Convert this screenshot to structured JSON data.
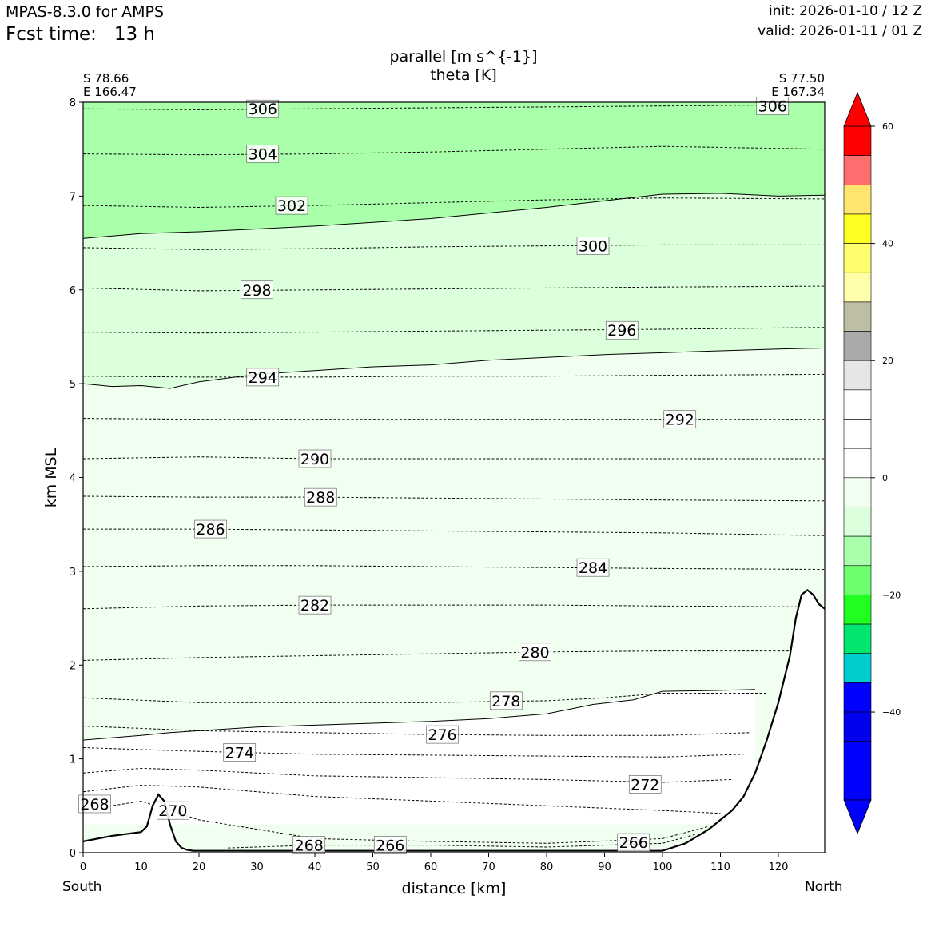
{
  "header": {
    "model": "MPAS-8.3.0 for AMPS",
    "fcst_label": "Fcst time:",
    "fcst_value": "13 h",
    "init": "init: 2026-01-10 / 12 Z",
    "valid": "valid: 2026-01-11 / 01 Z"
  },
  "endpoints": {
    "left_lat": "S 78.66",
    "left_lon": "E 166.47",
    "right_lat": "S 77.50",
    "right_lon": "E 167.34",
    "left_dir": "South",
    "right_dir": "North"
  },
  "chart_data": {
    "type": "contour",
    "title_line1": "parallel [m s^{-1}]",
    "title_line2": "theta [K]",
    "xlabel": "distance [km]",
    "ylabel": "km MSL",
    "xlim": [
      0,
      128
    ],
    "ylim": [
      0,
      8
    ],
    "xticks": [
      "0",
      "10",
      "20",
      "30",
      "40",
      "50",
      "60",
      "70",
      "80",
      "90",
      "100",
      "110",
      "120"
    ],
    "yticks": [
      "0",
      "1",
      "2",
      "3",
      "4",
      "5",
      "6",
      "7",
      "8"
    ],
    "wind_fill_boundaries": [
      {
        "level": "-15",
        "x": [
          0,
          10,
          20,
          30,
          40,
          50,
          60,
          70,
          80,
          90,
          100,
          110,
          120,
          128
        ],
        "y": [
          6.55,
          6.6,
          6.62,
          6.65,
          6.68,
          6.72,
          6.76,
          6.82,
          6.88,
          6.95,
          7.02,
          7.03,
          7.0,
          7.01
        ]
      },
      {
        "level": "-10",
        "x": [
          0,
          5,
          10,
          15,
          20,
          30,
          40,
          50,
          60,
          70,
          80,
          90,
          100,
          110,
          120,
          128
        ],
        "y": [
          5.0,
          4.97,
          4.98,
          4.95,
          5.02,
          5.1,
          5.14,
          5.18,
          5.2,
          5.25,
          5.28,
          5.31,
          5.33,
          5.35,
          5.37,
          5.38
        ]
      },
      {
        "level": "-5",
        "x": [
          0,
          10,
          15,
          20,
          30,
          40,
          50,
          60,
          70,
          80,
          88,
          95,
          100,
          110,
          116
        ],
        "y": [
          1.2,
          1.25,
          1.28,
          1.3,
          1.34,
          1.36,
          1.38,
          1.4,
          1.43,
          1.48,
          1.58,
          1.63,
          1.72,
          1.73,
          1.74
        ]
      }
    ],
    "theta_levels": [
      {
        "value": "306",
        "x": [
          0,
          20,
          40,
          60,
          80,
          100,
          118,
          128
        ],
        "y": [
          7.93,
          7.92,
          7.93,
          7.94,
          7.95,
          7.96,
          7.97,
          7.97
        ],
        "label_x": 31,
        "label_y": 7.93
      },
      {
        "value": "304",
        "x": [
          0,
          20,
          40,
          60,
          80,
          100,
          128
        ],
        "y": [
          7.45,
          7.44,
          7.45,
          7.47,
          7.5,
          7.53,
          7.5
        ],
        "label_x": 31,
        "label_y": 7.45
      },
      {
        "value": "302",
        "x": [
          0,
          20,
          40,
          60,
          80,
          100,
          128
        ],
        "y": [
          6.9,
          6.88,
          6.9,
          6.93,
          6.96,
          6.98,
          6.97
        ],
        "label_x": 36,
        "label_y": 6.9
      },
      {
        "value": "300",
        "x": [
          0,
          20,
          40,
          60,
          80,
          100,
          128
        ],
        "y": [
          6.45,
          6.43,
          6.44,
          6.46,
          6.47,
          6.48,
          6.48
        ],
        "label_x": 88,
        "label_y": 6.47
      },
      {
        "value": "298",
        "x": [
          0,
          20,
          40,
          60,
          80,
          100,
          128
        ],
        "y": [
          6.02,
          5.99,
          6.0,
          6.01,
          6.02,
          6.03,
          6.04
        ],
        "label_x": 30,
        "label_y": 6.0
      },
      {
        "value": "296",
        "x": [
          0,
          20,
          40,
          60,
          80,
          100,
          128
        ],
        "y": [
          5.55,
          5.54,
          5.55,
          5.56,
          5.57,
          5.58,
          5.6
        ],
        "label_x": 93,
        "label_y": 5.57
      },
      {
        "value": "294",
        "x": [
          0,
          20,
          40,
          60,
          80,
          100,
          128
        ],
        "y": [
          5.08,
          5.07,
          5.07,
          5.08,
          5.08,
          5.09,
          5.1
        ],
        "label_x": 31,
        "label_y": 5.07
      },
      {
        "value": "292",
        "x": [
          0,
          20,
          40,
          60,
          80,
          100,
          128
        ],
        "y": [
          4.63,
          4.62,
          4.62,
          4.62,
          4.62,
          4.62,
          4.62
        ],
        "label_x": 103,
        "label_y": 4.62
      },
      {
        "value": "290",
        "x": [
          0,
          20,
          40,
          60,
          80,
          100,
          128
        ],
        "y": [
          4.2,
          4.22,
          4.2,
          4.2,
          4.2,
          4.2,
          4.2
        ],
        "label_x": 40,
        "label_y": 4.2
      },
      {
        "value": "288",
        "x": [
          0,
          20,
          40,
          60,
          80,
          100,
          128
        ],
        "y": [
          3.8,
          3.79,
          3.79,
          3.78,
          3.77,
          3.76,
          3.75
        ],
        "label_x": 41,
        "label_y": 3.79
      },
      {
        "value": "286",
        "x": [
          0,
          20,
          40,
          60,
          80,
          100,
          128
        ],
        "y": [
          3.45,
          3.45,
          3.44,
          3.43,
          3.42,
          3.41,
          3.38
        ],
        "label_x": 22,
        "label_y": 3.45
      },
      {
        "value": "284",
        "x": [
          0,
          20,
          40,
          60,
          80,
          100,
          128
        ],
        "y": [
          3.05,
          3.06,
          3.06,
          3.05,
          3.04,
          3.03,
          3.02
        ],
        "label_x": 88,
        "label_y": 3.04
      },
      {
        "value": "282",
        "x": [
          0,
          20,
          40,
          60,
          80,
          100,
          128
        ],
        "y": [
          2.6,
          2.63,
          2.64,
          2.64,
          2.64,
          2.63,
          2.62
        ],
        "label_x": 40,
        "label_y": 2.64
      },
      {
        "value": "280",
        "x": [
          0,
          20,
          40,
          60,
          80,
          100,
          128
        ],
        "y": [
          2.05,
          2.08,
          2.1,
          2.12,
          2.14,
          2.15,
          2.15
        ],
        "label_x": 78,
        "label_y": 2.14
      },
      {
        "value": "278",
        "x": [
          0,
          20,
          40,
          60,
          80,
          90,
          100,
          118
        ],
        "y": [
          1.65,
          1.6,
          1.6,
          1.6,
          1.62,
          1.65,
          1.7,
          1.7
        ],
        "label_x": 73,
        "label_y": 1.62
      },
      {
        "value": "276",
        "x": [
          0,
          20,
          40,
          60,
          80,
          100,
          115
        ],
        "y": [
          1.35,
          1.3,
          1.28,
          1.26,
          1.25,
          1.25,
          1.28
        ],
        "label_x": 62,
        "label_y": 1.26
      },
      {
        "value": "274",
        "x": [
          0,
          10,
          20,
          40,
          60,
          80,
          100,
          114
        ],
        "y": [
          1.12,
          1.1,
          1.08,
          1.05,
          1.04,
          1.03,
          1.02,
          1.05
        ],
        "label_x": 27,
        "label_y": 1.07
      },
      {
        "value": "272",
        "x": [
          0,
          10,
          20,
          40,
          60,
          80,
          100,
          112
        ],
        "y": [
          0.85,
          0.9,
          0.88,
          0.82,
          0.8,
          0.78,
          0.75,
          0.78
        ],
        "label_x": 97,
        "label_y": 0.73
      },
      {
        "value": "270",
        "x": [
          0,
          10,
          20,
          40,
          60,
          80,
          100,
          110
        ],
        "y": [
          0.65,
          0.72,
          0.7,
          0.6,
          0.55,
          0.5,
          0.45,
          0.42
        ],
        "label_x": 15.5,
        "label_y": 0.45
      },
      {
        "value": "268",
        "x": [
          0,
          10,
          20,
          40,
          60,
          80,
          100,
          108
        ],
        "y": [
          0.45,
          0.55,
          0.35,
          0.15,
          0.12,
          0.1,
          0.15,
          0.28
        ],
        "label_x": 2,
        "label_y": 0.52
      },
      {
        "value": "266",
        "x": [
          25,
          40,
          60,
          80,
          100,
          106
        ],
        "y": [
          0.05,
          0.08,
          0.08,
          0.06,
          0.1,
          0.2
        ],
        "label_x": 53,
        "label_y": 0.08
      }
    ],
    "extra_labels": [
      {
        "value": "306",
        "label_x": 119,
        "label_y": 7.96
      },
      {
        "value": "268",
        "label_x": 39,
        "label_y": 0.08
      },
      {
        "value": "266",
        "label_x": 95,
        "label_y": 0.11
      }
    ],
    "terrain": {
      "x": [
        0,
        5,
        10,
        11,
        12,
        13,
        14,
        15,
        16,
        17,
        18,
        19,
        20,
        30,
        40,
        60,
        80,
        100,
        104,
        108,
        110,
        112,
        114,
        116,
        118,
        120,
        122,
        123,
        124,
        125,
        126,
        127,
        128
      ],
      "y": [
        0.12,
        0.18,
        0.22,
        0.28,
        0.5,
        0.62,
        0.55,
        0.3,
        0.12,
        0.05,
        0.03,
        0.02,
        0.02,
        0.02,
        0.02,
        0.02,
        0.02,
        0.02,
        0.1,
        0.25,
        0.35,
        0.45,
        0.6,
        0.85,
        1.2,
        1.6,
        2.1,
        2.5,
        2.75,
        2.8,
        2.75,
        2.65,
        2.6
      ]
    },
    "colorbar": {
      "ticks": [
        "60",
        "40",
        "20",
        "0",
        "−20",
        "−40"
      ],
      "tick_values": [
        60,
        40,
        20,
        0,
        -20,
        -40
      ],
      "vmin": -55,
      "vmax": 60,
      "over_color": "#ff0000",
      "under_color": "#0000ff",
      "bands": [
        {
          "from": 55,
          "to": 60,
          "color": "#ff0000"
        },
        {
          "from": 50,
          "to": 55,
          "color": "#ff6e6e"
        },
        {
          "from": 45,
          "to": 50,
          "color": "#ffe46e"
        },
        {
          "from": 40,
          "to": 45,
          "color": "#ffff21"
        },
        {
          "from": 35,
          "to": 40,
          "color": "#ffff6e"
        },
        {
          "from": 30,
          "to": 35,
          "color": "#ffffaa"
        },
        {
          "from": 25,
          "to": 30,
          "color": "#bebea5"
        },
        {
          "from": 20,
          "to": 25,
          "color": "#aaaaaa"
        },
        {
          "from": 15,
          "to": 20,
          "color": "#e6e6e6"
        },
        {
          "from": 10,
          "to": 15,
          "color": "#ffffff"
        },
        {
          "from": 5,
          "to": 10,
          "color": "#ffffff"
        },
        {
          "from": 0,
          "to": 5,
          "color": "#ffffff"
        },
        {
          "from": -5,
          "to": 0,
          "color": "#f0fff0"
        },
        {
          "from": -10,
          "to": -5,
          "color": "#dcffdc"
        },
        {
          "from": -15,
          "to": -10,
          "color": "#aaffaa"
        },
        {
          "from": -20,
          "to": -15,
          "color": "#6eff6e"
        },
        {
          "from": -25,
          "to": -20,
          "color": "#21ff21"
        },
        {
          "from": -30,
          "to": -25,
          "color": "#00e66e"
        },
        {
          "from": -35,
          "to": -30,
          "color": "#00cdcd"
        },
        {
          "from": -40,
          "to": -35,
          "color": "#0000ff"
        },
        {
          "from": -45,
          "to": -40,
          "color": "#0000ee"
        }
      ]
    }
  }
}
